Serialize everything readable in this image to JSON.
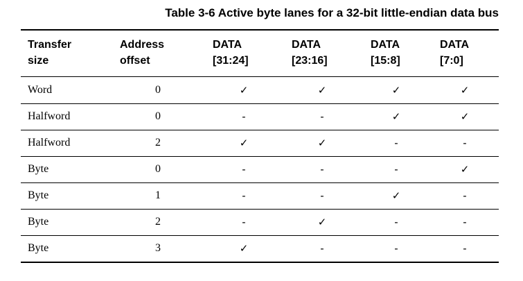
{
  "title": "Table 3-6 Active byte lanes for a 32-bit little-endian data bus",
  "table": {
    "headers": [
      [
        "Transfer",
        "size"
      ],
      [
        "Address",
        "offset"
      ],
      [
        "DATA",
        "[31:24]"
      ],
      [
        "DATA",
        "[23:16]"
      ],
      [
        "DATA",
        "[15:8]"
      ],
      [
        "DATA",
        "[7:0]"
      ]
    ],
    "rows": [
      [
        "Word",
        "0",
        "✓",
        "✓",
        "✓",
        "✓"
      ],
      [
        "Halfword",
        "0",
        "-",
        "-",
        "✓",
        "✓"
      ],
      [
        "Halfword",
        "2",
        "✓",
        "✓",
        "-",
        "-"
      ],
      [
        "Byte",
        "0",
        "-",
        "-",
        "-",
        "✓"
      ],
      [
        "Byte",
        "1",
        "-",
        "-",
        "✓",
        "-"
      ],
      [
        "Byte",
        "2",
        "-",
        "✓",
        "-",
        "-"
      ],
      [
        "Byte",
        "3",
        "✓",
        "-",
        "-",
        "-"
      ]
    ]
  }
}
